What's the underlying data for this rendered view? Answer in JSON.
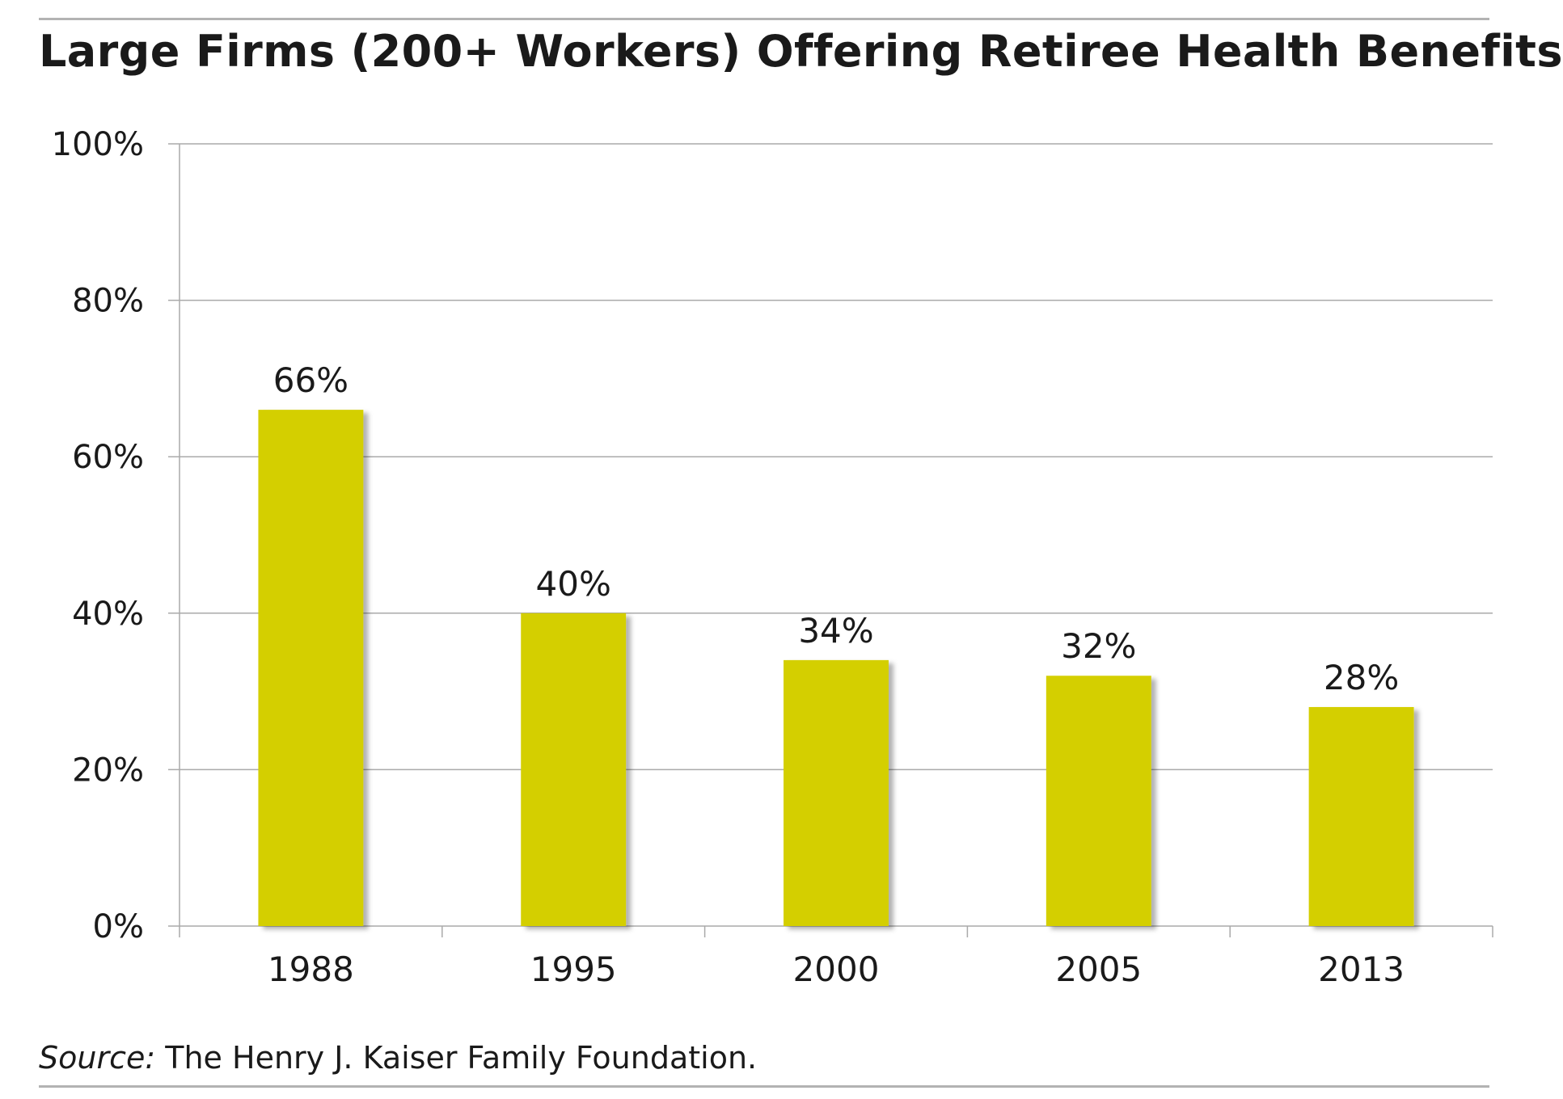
{
  "title": "Large Firms (200+ Workers) Offering Retiree Health Benefits",
  "source": {
    "label": "Source:",
    "text": " The Henry J. Kaiser Family Foundation."
  },
  "colors": {
    "bar": "#d4cf00",
    "grid": "#aaaaaa",
    "text": "#1a1a1a"
  },
  "chart_data": {
    "type": "bar",
    "title": "Large Firms (200+ Workers) Offering Retiree Health Benefits",
    "categories": [
      "1988",
      "1995",
      "2000",
      "2005",
      "2013"
    ],
    "values": [
      66,
      40,
      34,
      32,
      28
    ],
    "data_labels": [
      "66%",
      "40%",
      "34%",
      "32%",
      "28%"
    ],
    "ylim": [
      0,
      100
    ],
    "yticks": [
      0,
      20,
      40,
      60,
      80,
      100
    ],
    "ytick_labels": [
      "0%",
      "20%",
      "40%",
      "60%",
      "80%",
      "100%"
    ],
    "xlabel": "",
    "ylabel": "",
    "grid": true,
    "legend": false
  }
}
